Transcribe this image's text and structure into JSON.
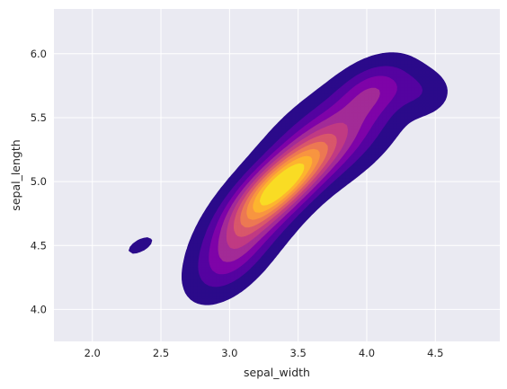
{
  "chart_data": {
    "type": "kde_contour",
    "title": "",
    "xlabel": "sepal_width",
    "ylabel": "sepal_length",
    "xlim": [
      1.72,
      4.97
    ],
    "ylim": [
      3.75,
      6.35
    ],
    "xticks": [
      "2.0",
      "2.5",
      "3.0",
      "3.5",
      "4.0",
      "4.5"
    ],
    "yticks": [
      "4.0",
      "4.5",
      "5.0",
      "5.5",
      "6.0"
    ],
    "grid": true,
    "legend": "none",
    "background": "#eaeaf2",
    "colormap": "plasma",
    "filled": true,
    "level_colors": [
      "#2b0a8a",
      "#5403a0",
      "#7e03a8",
      "#a22b97",
      "#c03a83",
      "#d8576b",
      "#ec7853",
      "#f89540",
      "#fdb42f",
      "#f9dc24"
    ]
  }
}
